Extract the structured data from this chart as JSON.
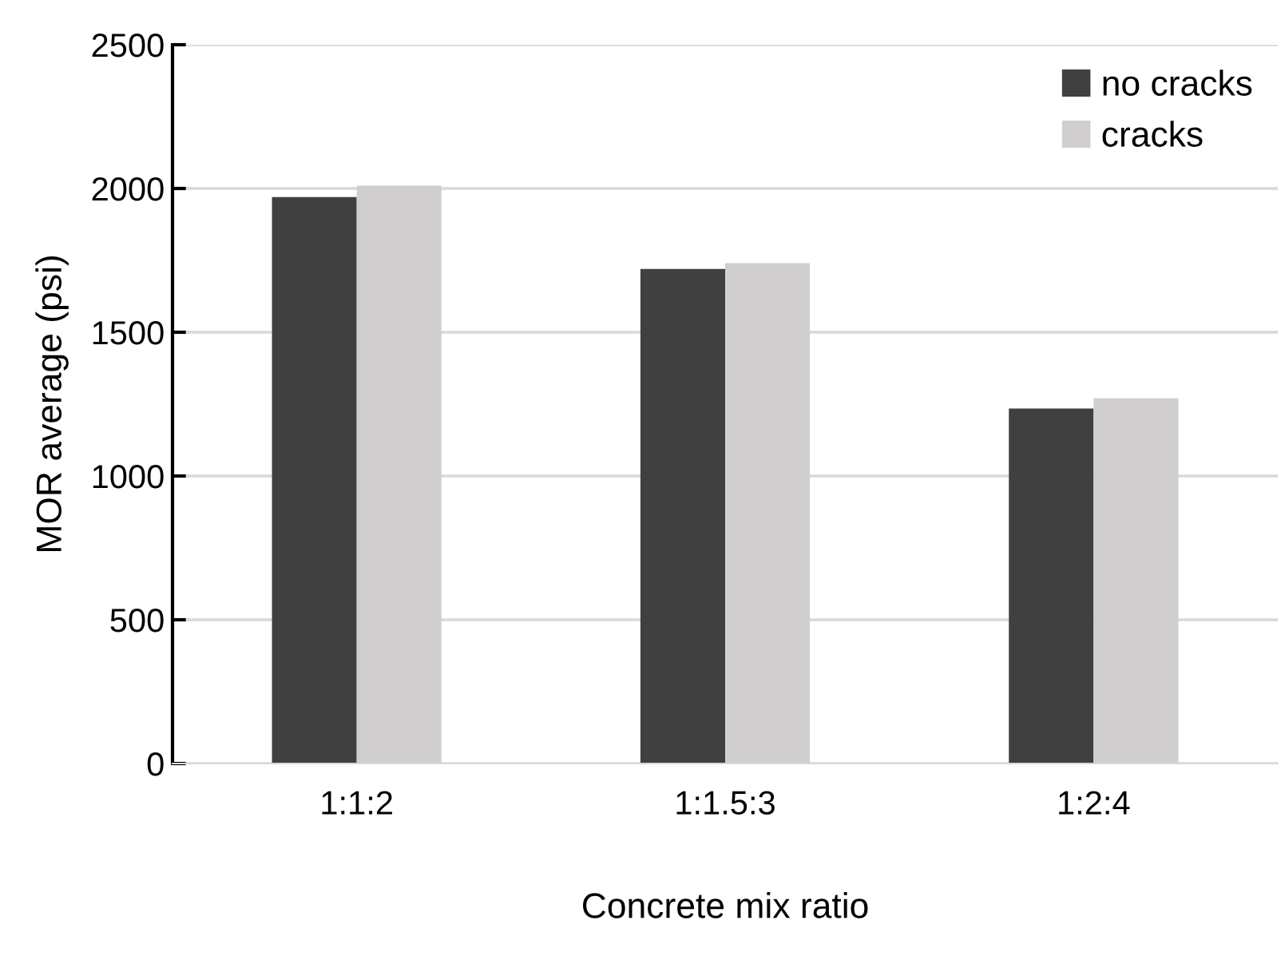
{
  "chart_data": {
    "type": "bar",
    "xlabel": "Concrete mix ratio",
    "ylabel": "MOR average (psi)",
    "categories": [
      "1:1:2",
      "1:1.5:3",
      "1:2:4"
    ],
    "series": [
      {
        "name": "no cracks",
        "color": "#404040",
        "values": [
          1970,
          1720,
          1235
        ]
      },
      {
        "name": "cracks",
        "color": "#d0cece",
        "values": [
          2010,
          1740,
          1270
        ]
      }
    ],
    "ylim": [
      0,
      2500
    ],
    "yticks": [
      0,
      500,
      1000,
      1500,
      2000,
      2500
    ],
    "grid": "y",
    "legend": "top right"
  }
}
